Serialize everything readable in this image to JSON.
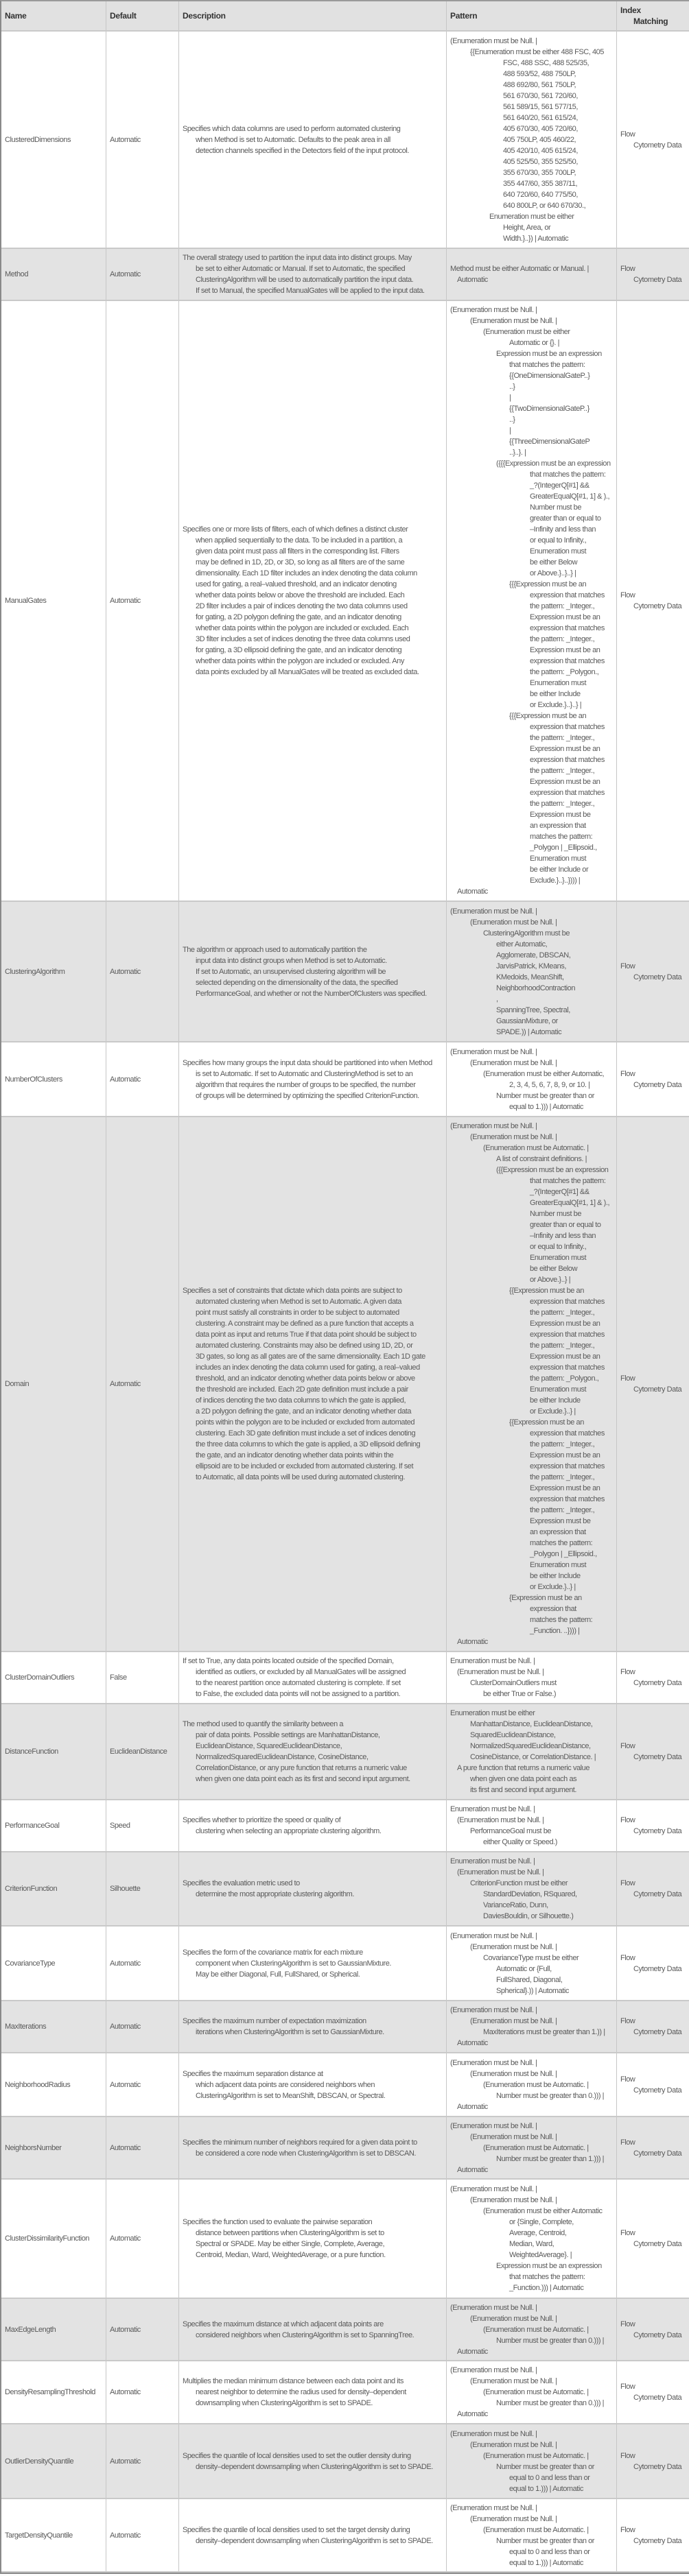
{
  "header": {
    "name": "Name",
    "default": "Default",
    "description": "Description",
    "pattern": "Pattern",
    "index_matching": [
      "Index",
      "Matching"
    ]
  },
  "rows": [
    {
      "name": "ClusteredDimensions",
      "default": "Automatic",
      "description": [
        "Specifies which data columns are used to perform automated clustering",
        "when Method is set to Automatic.  Defaults to the peak area in all",
        "detection channels specified in the Detectors field of the input protocol."
      ],
      "pattern": [
        "(Enumeration must be Null. |",
        "{{Enumeration must be either 488 FSC, 405",
        "FSC, 488 SSC, 488 525/35,",
        "488 593/52, 488 750LP,",
        "488 692/80, 561 750LP,",
        "561 670/30, 561 720/60,",
        "561 589/15, 561 577/15,",
        "561 640/20, 561 615/24,",
        "405 670/30, 405 720/60,",
        "405 750LP, 405 460/22,",
        "405 420/10, 405 615/24,",
        "405 525/50, 355 525/50,",
        "355 670/30, 355 700LP,",
        "355 447/60, 355 387/11,",
        "640 720/60, 640 775/50,",
        "640 800LP, or 640 670/30.,",
        "Enumeration must be either",
        "Height, Area, or",
        "Width.}..}) | Automatic"
      ],
      "index_matching": [
        "Flow",
        "Cytometry Data"
      ]
    },
    {
      "name": "Method",
      "default": "Automatic",
      "description": [
        "The overall strategy used to partition the input data into distinct groups. May",
        "be set to either Automatic or Manual. If set to Automatic, the specified",
        "ClusteringAlgorithm will be used to automatically partition the input data.",
        "If set to Manual, the specified ManualGates will be applied to the input data."
      ],
      "pattern": [
        "Method must be either Automatic or Manual. |",
        "Automatic"
      ],
      "index_matching": [
        "Flow",
        "Cytometry Data"
      ]
    },
    {
      "name": "ManualGates",
      "default": "Automatic",
      "description": [
        "Specifies one or more lists of filters, each of which defines a distinct cluster",
        "when applied sequentially to the data. To be included in a partition, a",
        "given data point must pass all filters in the corresponding list. Filters",
        "may be defined in 1D, 2D, or 3D, so long as all filters are of the same",
        "dimensionality. Each 1D filter includes an index denoting the data column",
        "used for gating, a real–valued threshold, and an indicator denoting",
        "whether data points below or above the threshold are included. Each",
        "2D filter includes a pair of indices denoting the two data columns used",
        "for gating, a 2D polygon defining the gate, and an indicator denoting",
        "whether data points within the polygon are included or excluded. Each",
        "3D filter includes a set of indices denoting the three data columns used",
        "for gating, a 3D ellipsoid defining the gate, and an indicator denoting",
        "whether data points within the polygon are included or excluded. Any",
        "data points excluded by all ManualGates will be treated as excluded data."
      ],
      "pattern": [
        "(Enumeration must be Null. |",
        "(Enumeration must be Null. |",
        "(Enumeration must be either",
        "Automatic or {}. |",
        "Expression must be an expression",
        "that matches the pattern:",
        "{{OneDimensionalGateP..}",
        "..}",
        "|",
        "{{TwoDimensionalGateP..}",
        "..}",
        "|",
        "{{ThreeDimensionalGateP",
        "..}..}. |",
        "({{{Expression must be an expression",
        "that matches the pattern:",
        "_?(IntegerQ[#1] &&",
        "GreaterEqualQ[#1, 1] & ).,",
        "Number must be",
        "greater than or equal to",
        "–Infinity and less than",
        "or equal to Infinity.,",
        "Enumeration must",
        "be either Below",
        "or Above.}..}..} |",
        "{{{Expression must be an",
        "expression that matches",
        "the pattern: _Integer.,",
        "Expression must be an",
        "expression that matches",
        "the pattern: _Integer.,",
        "Expression must be an",
        "expression that matches",
        "the pattern: _Polygon.,",
        "Enumeration must",
        "be either Include",
        "or Exclude.}..}..} |",
        "{{{Expression must be an",
        "expression that matches",
        "the pattern: _Integer.,",
        "Expression must be an",
        "expression that matches",
        "the pattern: _Integer.,",
        "Expression must be an",
        "expression that matches",
        "the pattern: _Integer.,",
        "Expression must be",
        "an expression that",
        "matches the pattern:",
        "_Polygon | _Ellipsoid.,",
        "Enumeration must",
        "be either Include or",
        "Exclude.}..}..}))) |",
        "Automatic"
      ],
      "index_matching": [
        "Flow",
        "Cytometry Data"
      ]
    },
    {
      "name": "ClusteringAlgorithm",
      "default": "Automatic",
      "description": [
        "The algorithm or approach used to automatically partition the",
        "input data into distinct groups when Method is set to Automatic.",
        "If set to Automatic, an unsupervised clustering algorithm will be",
        "selected depending on the dimensionality of the data, the specified",
        "PerformanceGoal, and whether or not the NumberOfClusters was specified."
      ],
      "pattern": [
        "(Enumeration must be Null. |",
        "(Enumeration must be Null. |",
        "ClusteringAlgorithm must be",
        "either Automatic,",
        "Agglomerate, DBSCAN,",
        "JarvisPatrick, KMeans,",
        "KMedoids, MeanShift,",
        "NeighborhoodContraction",
        ",",
        "SpanningTree, Spectral,",
        "GaussianMixture, or",
        "SPADE.)) | Automatic"
      ],
      "index_matching": [
        "Flow",
        "Cytometry Data"
      ]
    },
    {
      "name": "NumberOfClusters",
      "default": "Automatic",
      "description": [
        "Specifies how many groups the input data should be partitioned into when Method",
        "is set to Automatic.  If set to Automatic and ClusteringMethod is set to an",
        "algorithm that requires the number of groups to be specified, the number",
        "of groups will be determined by optimizing the specified CriterionFunction."
      ],
      "pattern": [
        "(Enumeration must be Null. |",
        "(Enumeration must be Null. |",
        "(Enumeration must be either Automatic,",
        "2, 3, 4, 5, 6, 7, 8, 9, or 10. |",
        "Number must be greater than or",
        "equal to 1.))) | Automatic"
      ],
      "index_matching": [
        "Flow",
        "Cytometry Data"
      ]
    },
    {
      "name": "Domain",
      "default": "Automatic",
      "description": [
        "Specifies a set of constraints that dictate which data points are subject to",
        "automated clustering when Method is set to Automatic. A given data",
        "point must satisfy all constraints in order to be subject to automated",
        "clustering. A constraint may be defined as a pure function that accepts a",
        "data point as input and returns True if that data point should be subject to",
        "automated clustering. Constraints may also be defined using 1D, 2D, or",
        "3D gates, so long as all gates are of the same dimensionality. Each 1D gate",
        "includes an index denoting the data column used for gating, a real–valued",
        "threshold, and an indicator denoting whether data points below or above",
        "the threshold are included. Each 2D gate definition must include a pair",
        "of indices denoting the two data columns to which the gate is applied,",
        "a 2D polygon defining the gate, and an indicator denoting whether data",
        "points within the polygon are to be included or excluded from automated",
        "clustering. Each 3D gate definition must include a set of indices denoting",
        "the three data columns to which the gate is applied, a 3D ellipsoid defining",
        "the gate, and an indicator denoting whether data points within the",
        "ellipsoid are to be included or excluded from automated clustering.  If set",
        "to Automatic, all data points will be used during automated clustering."
      ],
      "pattern": [
        "(Enumeration must be Null. |",
        "(Enumeration must be Null. |",
        "(Enumeration must be Automatic. |",
        "A list of constraint definitions. |",
        "({{Expression must be an expression",
        "that matches the pattern:",
        "_?(IntegerQ[#1] &&",
        "GreaterEqualQ[#1, 1] & ).,",
        "Number must be",
        "greater than or equal to",
        "–Infinity and less than",
        "or equal to Infinity.,",
        "Enumeration must",
        "be either Below",
        "or Above.}..} |",
        "{{Expression must be an",
        "expression that matches",
        "the pattern: _Integer.,",
        "Expression must be an",
        "expression that matches",
        "the pattern: _Integer.,",
        "Expression must be an",
        "expression that matches",
        "the pattern: _Polygon.,",
        "Enumeration must",
        "be either Include",
        "or Exclude.}..} |",
        "{{Expression must be an",
        "expression that matches",
        "the pattern: _Integer.,",
        "Expression must be an",
        "expression that matches",
        "the pattern: _Integer.,",
        "Expression must be an",
        "expression that matches",
        "the pattern: _Integer.,",
        "Expression must be",
        "an expression that",
        "matches the pattern:",
        "_Polygon | _Ellipsoid.,",
        "Enumeration must",
        "be either Include",
        "or Exclude.}..} |",
        "{Expression must be an",
        "expression that",
        "matches the pattern:",
        "_Function. ..}))) |",
        "Automatic"
      ],
      "index_matching": [
        "Flow",
        "Cytometry Data"
      ]
    },
    {
      "name": "ClusterDomainOutliers",
      "default": "False",
      "description": [
        "If set to True, any data points located outside of the specified Domain,",
        "identified as outliers, or excluded by all ManualGates will be assigned",
        "to the nearest partition once automated clustering is complete. If set",
        "to False, the excluded data points will not be assigned to a partition."
      ],
      "pattern": [
        "Enumeration must be Null. |",
        "(Enumeration must be Null. |",
        "ClusterDomainOutliers must",
        "be either True or False.)"
      ],
      "index_matching": [
        "Flow",
        "Cytometry Data"
      ]
    },
    {
      "name": "DistanceFunction",
      "default": "EuclideanDistance",
      "description": [
        "The method used to quantify the similarity between a",
        "pair of data points. Possible settings are ManhattanDistance,",
        "EuclideanDistance, SquaredEuclideanDistance,",
        "NormalizedSquaredEuclideanDistance, CosineDistance,",
        "CorrelationDistance, or any pure function that returns a numeric value",
        "when given one data point each as its first and second input argument."
      ],
      "pattern": [
        "Enumeration must be either",
        "ManhattanDistance, EuclideanDistance,",
        "SquaredEuclideanDistance,",
        "NormalizedSquaredEuclideanDistance,",
        "CosineDistance, or CorrelationDistance. |",
        "A pure function that returns a numeric value",
        "when given one data point each as",
        "its first and second input argument."
      ],
      "index_matching": [
        "Flow",
        "Cytometry Data"
      ]
    },
    {
      "name": "PerformanceGoal",
      "default": "Speed",
      "description": [
        "Specifies whether to prioritize the speed or quality of",
        "clustering when selecting an appropriate clustering algorithm."
      ],
      "pattern": [
        "Enumeration must be Null. |",
        "(Enumeration must be Null. |",
        "PerformanceGoal must be",
        "either Quality or Speed.)"
      ],
      "index_matching": [
        "Flow",
        "Cytometry Data"
      ]
    },
    {
      "name": "CriterionFunction",
      "default": "Silhouette",
      "description": [
        "Specifies the evaluation metric used to",
        "determine the most appropriate clustering algorithm."
      ],
      "pattern": [
        "Enumeration must be Null. |",
        "(Enumeration must be Null. |",
        "CriterionFunction must be either",
        "StandardDeviation, RSquared,",
        "VarianceRatio, Dunn,",
        "DaviesBouldin, or Silhouette.)"
      ],
      "index_matching": [
        "Flow",
        "Cytometry Data"
      ]
    },
    {
      "name": "CovarianceType",
      "default": "Automatic",
      "description": [
        "Specifies the form of the covariance matrix for each mixture",
        "component when ClusteringAlgorithm is set to GaussianMixture.",
        "May be either Diagonal, Full, FullShared, or Spherical."
      ],
      "pattern": [
        "(Enumeration must be Null. |",
        "(Enumeration must be Null. |",
        "CovarianceType must be either",
        "Automatic or {Full,",
        "FullShared, Diagonal,",
        "Spherical}.)) | Automatic"
      ],
      "index_matching": [
        "Flow",
        "Cytometry Data"
      ]
    },
    {
      "name": "MaxIterations",
      "default": "Automatic",
      "description": [
        "Specifies the maximum number of expectation maximization",
        "iterations when ClusteringAlgorithm is set to GaussianMixture."
      ],
      "pattern": [
        "(Enumeration must be Null. |",
        "(Enumeration must be Null. |",
        "MaxIterations must be greater than 1.)) |",
        "Automatic"
      ],
      "index_matching": [
        "Flow",
        "Cytometry Data"
      ]
    },
    {
      "name": "NeighborhoodRadius",
      "default": "Automatic",
      "description": [
        "Specifies the maximum separation distance at",
        "which adjacent data points are considered neighbors when",
        "ClusteringAlgorithm is set to MeanShift, DBSCAN, or Spectral."
      ],
      "pattern": [
        "(Enumeration must be Null. |",
        "(Enumeration must be Null. |",
        "(Enumeration must be Automatic. |",
        "Number must be greater than 0.))) |",
        "Automatic"
      ],
      "index_matching": [
        "Flow",
        "Cytometry Data"
      ]
    },
    {
      "name": "NeighborsNumber",
      "default": "Automatic",
      "description": [
        "Specifies the minimum number of neighbors required for a given data point to",
        "be considered a core node when ClusteringAlgorithm is set to DBSCAN."
      ],
      "pattern": [
        "(Enumeration must be Null. |",
        "(Enumeration must be Null. |",
        "(Enumeration must be Automatic. |",
        "Number must be greater than 1.))) |",
        "Automatic"
      ],
      "index_matching": [
        "Flow",
        "Cytometry Data"
      ]
    },
    {
      "name": "ClusterDissimilarityFunction",
      "default": "Automatic",
      "description": [
        "Specifies the function used to evaluate the pairwise separation",
        "distance between partitions when ClusteringAlgorithm is set to",
        "Spectral or SPADE. May be either Single, Complete, Average,",
        "Centroid, Median, Ward, WeightedAverage, or a pure function."
      ],
      "pattern": [
        "(Enumeration must be Null. |",
        "(Enumeration must be Null. |",
        "(Enumeration must be either Automatic",
        "or {Single, Complete,",
        "Average, Centroid,",
        "Median, Ward,",
        "WeightedAverage}. |",
        "Expression must be an expression",
        "that matches the pattern:",
        "_Function.))) | Automatic"
      ],
      "index_matching": [
        "Flow",
        "Cytometry Data"
      ]
    },
    {
      "name": "MaxEdgeLength",
      "default": "Automatic",
      "description": [
        "Specifies the maximum distance at which adjacent data points are",
        "considered neighbors when ClusteringAlgorithm is set to SpanningTree."
      ],
      "pattern": [
        "(Enumeration must be Null. |",
        "(Enumeration must be Null. |",
        "(Enumeration must be Automatic. |",
        "Number must be greater than 0.))) |",
        "Automatic"
      ],
      "index_matching": [
        "Flow",
        "Cytometry Data"
      ]
    },
    {
      "name": "DensityResamplingThreshold",
      "default": "Automatic",
      "description": [
        "Multiplies the median minimum distance between each data point and its",
        "nearest neighbor to determine the radius used for density–dependent",
        "downsampling when ClusteringAlgorithm is set to SPADE."
      ],
      "pattern": [
        "(Enumeration must be Null. |",
        "(Enumeration must be Null. |",
        "(Enumeration must be Automatic. |",
        "Number must be greater than 0.))) |",
        "Automatic"
      ],
      "index_matching": [
        "Flow",
        "Cytometry Data"
      ]
    },
    {
      "name": "OutlierDensityQuantile",
      "default": "Automatic",
      "description": [
        "Specifies the quantile of local densities used to set the outlier density during",
        "density–dependent downsampling when ClusteringAlgorithm is set to SPADE."
      ],
      "pattern": [
        "(Enumeration must be Null. |",
        "(Enumeration must be Null. |",
        "(Enumeration must be Automatic. |",
        "Number must be greater than or",
        "equal to 0 and less than or",
        "equal to 1.))) | Automatic"
      ],
      "index_matching": [
        "Flow",
        "Cytometry Data"
      ]
    },
    {
      "name": "TargetDensityQuantile",
      "default": "Automatic",
      "description": [
        "Specifies the quantile of local densities used to set the target density during",
        "density–dependent downsampling when ClusteringAlgorithm is set to SPADE."
      ],
      "pattern": [
        "(Enumeration must be Null. |",
        "(Enumeration must be Null. |",
        "(Enumeration must be Automatic. |",
        "Number must be greater than or",
        "equal to 0 and less than or",
        "equal to 1.))) | Automatic"
      ],
      "index_matching": [
        "Flow",
        "Cytometry Data"
      ]
    }
  ]
}
